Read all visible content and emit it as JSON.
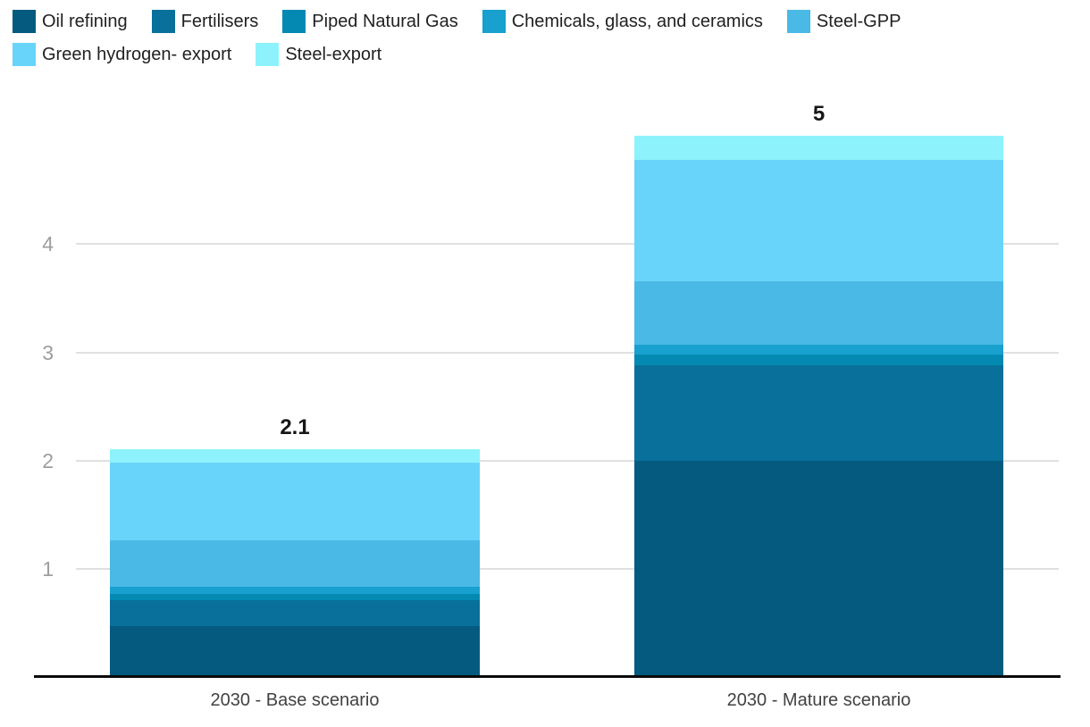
{
  "chart_data": {
    "type": "bar",
    "stacked": true,
    "categories": [
      "2030 - Base scenario",
      "2030 - Mature scenario"
    ],
    "series": [
      {
        "name": "Oil refining",
        "color": "#055a7f",
        "values": [
          0.47,
          2.0
        ]
      },
      {
        "name": "Fertilisers",
        "color": "#08709a",
        "values": [
          0.24,
          0.88
        ]
      },
      {
        "name": "Piped Natural Gas",
        "color": "#048ab2",
        "values": [
          0.06,
          0.1
        ]
      },
      {
        "name": "Chemicals, glass, and ceramics",
        "color": "#18a0ce",
        "values": [
          0.06,
          0.09
        ]
      },
      {
        "name": "Steel-GPP",
        "color": "#4ab9e5",
        "values": [
          0.43,
          0.59
        ]
      },
      {
        "name": "Green hydrogen- export",
        "color": "#69d4fa",
        "values": [
          0.72,
          1.12
        ]
      },
      {
        "name": "Steel-export",
        "color": "#8ef2fc",
        "values": [
          0.12,
          0.22
        ]
      }
    ],
    "totals_labels": [
      "2.1",
      "5"
    ],
    "y_ticks": [
      1,
      2,
      3,
      4
    ],
    "ylim": [
      0,
      5.4
    ],
    "grid": true,
    "legend_position": "top",
    "legend_rows": [
      [
        0,
        1,
        2,
        3,
        4
      ],
      [
        5,
        6
      ]
    ],
    "colors": {
      "gridline": "#e0e0e0",
      "tick_text": "#9e9e9e",
      "category_text": "#424242",
      "total_text": "#171717",
      "axis_line": "#0a0a0a"
    }
  }
}
